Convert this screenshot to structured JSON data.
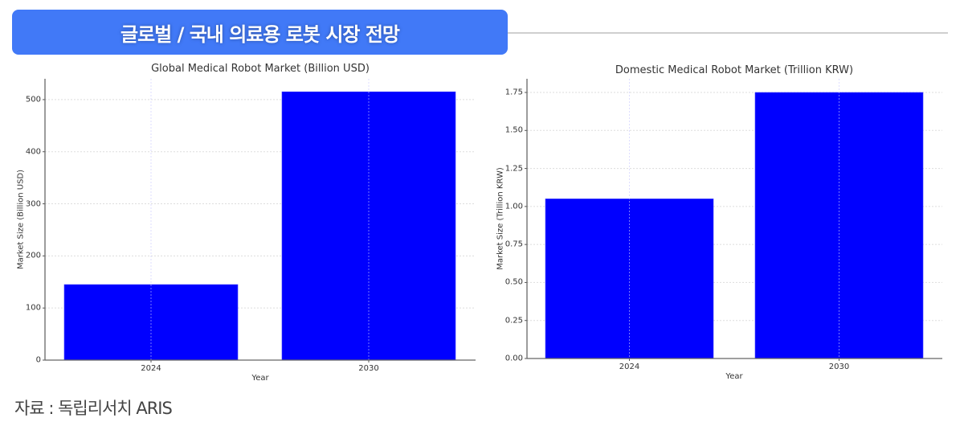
{
  "header": {
    "title": "글로벌 / 국내 의료용 로봇 시장 전망",
    "accent_color": "#4179f7"
  },
  "footer": {
    "source": "자료 : 독립리서치 ARIS"
  },
  "chart_data": [
    {
      "type": "bar",
      "title": "Global Medical Robot Market (Billion USD)",
      "categories": [
        "2024",
        "2030"
      ],
      "values": [
        145,
        515
      ],
      "xlabel": "Year",
      "ylabel": "Market Size (Billion USD)",
      "yticks": [
        "0",
        "100",
        "200",
        "300",
        "400",
        "500"
      ],
      "ylim": [
        0,
        540
      ],
      "grid": true,
      "bar_color": "#0000ff",
      "legend": null
    },
    {
      "type": "bar",
      "title": "Domestic Medical Robot Market (Trillion KRW)",
      "categories": [
        "2024",
        "2030"
      ],
      "values": [
        1.05,
        1.75
      ],
      "xlabel": "Year",
      "ylabel": "Market Size (Trillion KRW)",
      "yticks": [
        "0.00",
        "0.25",
        "0.50",
        "0.75",
        "1.00",
        "1.25",
        "1.50",
        "1.75"
      ],
      "ylim": [
        0,
        1.84
      ],
      "grid": true,
      "bar_color": "#0000ff",
      "legend": null
    }
  ]
}
